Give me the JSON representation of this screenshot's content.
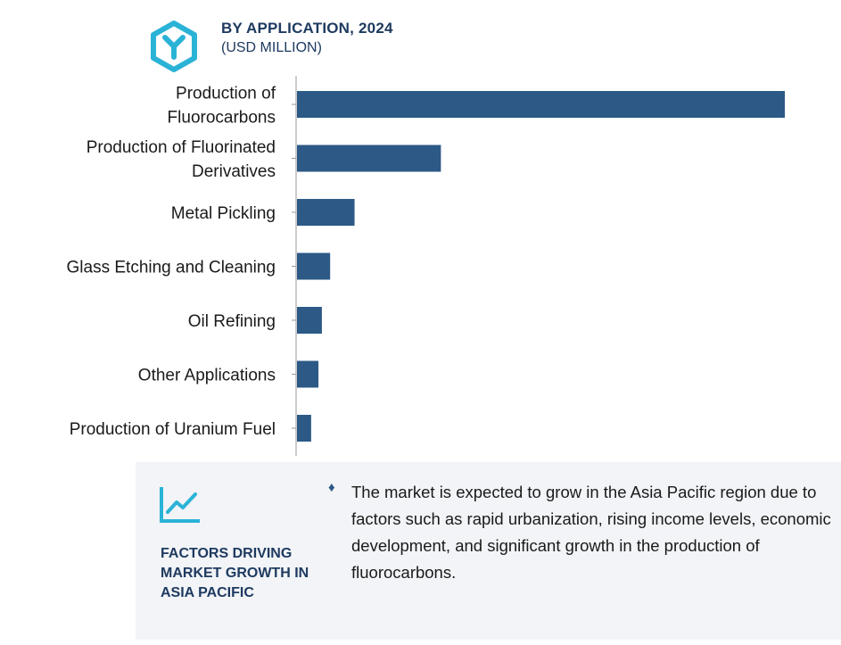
{
  "header": {
    "title": "BY APPLICATION, 2024",
    "subtitle": "(USD MILLION)",
    "logo_icon": "hexagon-y-logo-icon",
    "logo_color": "#2ab3d6"
  },
  "chart_data": {
    "type": "bar",
    "orientation": "horizontal",
    "categories": [
      [
        "Production of",
        "Fluorocarbons"
      ],
      [
        "Production of Fluorinated",
        "Derivatives"
      ],
      [
        "Metal Pickling"
      ],
      [
        "Glass Etching and Cleaning"
      ],
      [
        "Oil Refining"
      ],
      [
        "Other Applications"
      ],
      [
        "Production of Uranium Fuel"
      ]
    ],
    "values": [
      100,
      29.5,
      11.8,
      6.8,
      5.1,
      4.4,
      2.9
    ],
    "xlim": [
      0,
      100
    ],
    "bar_color": "#2c5986",
    "grid": false,
    "legend": "none"
  },
  "factors": {
    "icon": "trend-chart-icon",
    "title": "FACTORS DRIVING\nMARKET GROWTH IN\nASIA PACIFIC",
    "bullet_symbol": "♦",
    "bullet_text": "The market is expected to grow in the Asia Pacific region due to factors such as rapid urbanization, rising income levels, economic development, and significant growth in the production of fluorocarbons."
  }
}
